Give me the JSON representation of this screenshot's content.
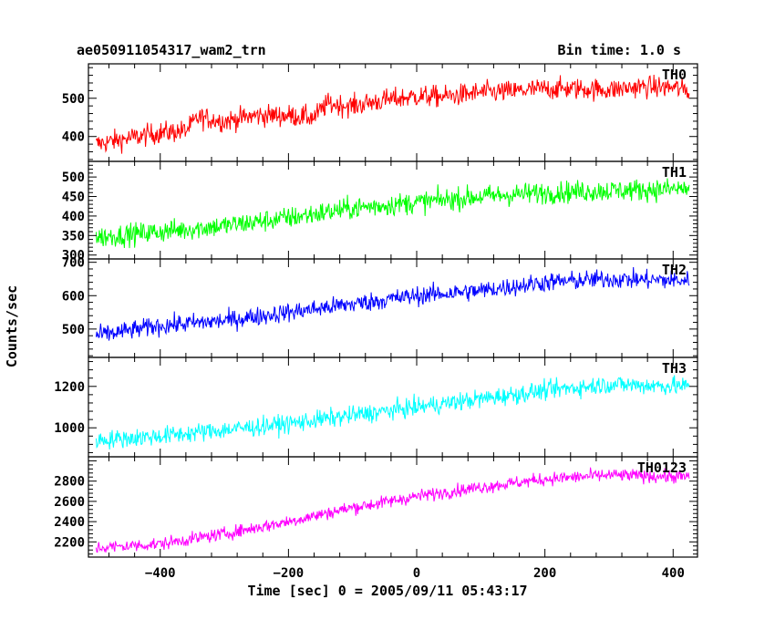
{
  "chart_data": {
    "type": "line",
    "title": "ae050911054317_wam2_trn",
    "subtitle": "Bin time: 1.0 s",
    "xlabel": "Time [sec] 0 = 2005/09/11 05:43:17",
    "ylabel": "Counts/sec",
    "xlim": [
      -512,
      438
    ],
    "x_ticks": [
      -400,
      -200,
      0,
      200,
      400
    ],
    "x_data_range": [
      -500,
      425
    ],
    "panels": [
      {
        "name": "TH0",
        "color": "#ff0000",
        "ylim": [
          335,
          590
        ],
        "y_ticks": [
          400,
          500
        ],
        "points": [
          [
            -500,
            380
          ],
          [
            -450,
            395
          ],
          [
            -400,
            410
          ],
          [
            -360,
            415
          ],
          [
            -340,
            450
          ],
          [
            -300,
            440
          ],
          [
            -250,
            455
          ],
          [
            -200,
            455
          ],
          [
            -160,
            450
          ],
          [
            -140,
            485
          ],
          [
            -100,
            480
          ],
          [
            -50,
            495
          ],
          [
            0,
            505
          ],
          [
            50,
            505
          ],
          [
            100,
            515
          ],
          [
            150,
            518
          ],
          [
            200,
            525
          ],
          [
            250,
            525
          ],
          [
            300,
            522
          ],
          [
            350,
            530
          ],
          [
            400,
            528
          ],
          [
            425,
            520
          ]
        ],
        "noise": 22
      },
      {
        "name": "TH1",
        "color": "#00ff00",
        "ylim": [
          290,
          540
        ],
        "y_ticks": [
          300,
          350,
          400,
          450,
          500
        ],
        "points": [
          [
            -500,
            345
          ],
          [
            -400,
            360
          ],
          [
            -300,
            375
          ],
          [
            -200,
            395
          ],
          [
            -100,
            420
          ],
          [
            0,
            435
          ],
          [
            100,
            450
          ],
          [
            200,
            460
          ],
          [
            300,
            465
          ],
          [
            425,
            470
          ]
        ],
        "noise": 22
      },
      {
        "name": "TH2",
        "color": "#0000ff",
        "ylim": [
          415,
          710
        ],
        "y_ticks": [
          500,
          600,
          700
        ],
        "points": [
          [
            -500,
            480
          ],
          [
            -400,
            510
          ],
          [
            -300,
            525
          ],
          [
            -200,
            550
          ],
          [
            -100,
            575
          ],
          [
            0,
            600
          ],
          [
            100,
            615
          ],
          [
            200,
            640
          ],
          [
            300,
            650
          ],
          [
            425,
            645
          ]
        ],
        "noise": 22
      },
      {
        "name": "TH3",
        "color": "#00ffff",
        "ylim": [
          860,
          1340
        ],
        "y_ticks": [
          1000,
          1200
        ],
        "points": [
          [
            -500,
            940
          ],
          [
            -400,
            960
          ],
          [
            -300,
            990
          ],
          [
            -200,
            1020
          ],
          [
            -100,
            1060
          ],
          [
            0,
            1100
          ],
          [
            100,
            1140
          ],
          [
            200,
            1180
          ],
          [
            300,
            1210
          ],
          [
            425,
            1200
          ]
        ],
        "noise": 35
      },
      {
        "name": "TH0123",
        "color": "#ff00ff",
        "ylim": [
          2050,
          3040
        ],
        "y_ticks": [
          2200,
          2400,
          2600,
          2800
        ],
        "points": [
          [
            -500,
            2140
          ],
          [
            -400,
            2180
          ],
          [
            -300,
            2280
          ],
          [
            -200,
            2400
          ],
          [
            -100,
            2540
          ],
          [
            -60,
            2580
          ],
          [
            0,
            2650
          ],
          [
            100,
            2740
          ],
          [
            200,
            2820
          ],
          [
            300,
            2860
          ],
          [
            425,
            2840
          ]
        ],
        "noise": 50
      }
    ]
  }
}
